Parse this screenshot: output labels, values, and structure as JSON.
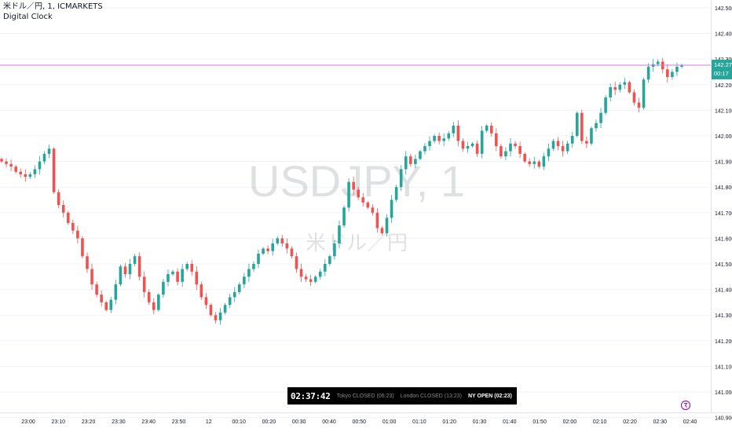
{
  "legend": {
    "symbol_line": "米ドル／円, 1, ICMARKETS",
    "indicator_name": "Digital Clock"
  },
  "watermark": {
    "ticker": "USDJPY, 1",
    "subtitle": "米ドル／円"
  },
  "price_label": {
    "price": "142.276",
    "countdown": "00:17"
  },
  "clock": {
    "time": "02:37:42",
    "sessions": [
      {
        "label": "Tokyo CLOSED (06:23)",
        "open": false
      },
      {
        "label": "London CLOSED (13:23)",
        "open": false
      },
      {
        "label": "NY OPEN (02:23)",
        "open": true
      }
    ]
  },
  "colors": {
    "up": "#26a69a",
    "down": "#ef5350",
    "grid": "#f0f3fa",
    "axis_text": "#131722",
    "price_line": "#c77ddd",
    "label_bg": "#26a69a",
    "clock_bg": "#000000",
    "watermark": "#131722"
  },
  "chart_data": {
    "type": "candlestick",
    "ylim": [
      141.0,
      142.5
    ],
    "y_ticks": [
      "142.500",
      "142.400",
      "142.300",
      "142.200",
      "142.100",
      "142.000",
      "141.900",
      "141.800",
      "141.700",
      "141.600",
      "141.500",
      "141.400",
      "141.300",
      "141.200",
      "141.100",
      "141.000",
      "140.900"
    ],
    "x_ticks": [
      "23:00",
      "23:10",
      "23:20",
      "23:30",
      "23:40",
      "23:50",
      "12",
      "00:10",
      "00:20",
      "00:30",
      "00:40",
      "00:50",
      "01:00",
      "01:10",
      "01:20",
      "01:30",
      "01:40",
      "01:50",
      "02:00",
      "02:10",
      "02:20",
      "02:30",
      "02:40"
    ],
    "close_path": [
      141.9,
      141.89,
      141.88,
      141.86,
      141.85,
      141.84,
      141.85,
      141.87,
      141.9,
      141.93,
      141.95,
      141.78,
      141.73,
      141.7,
      141.66,
      141.63,
      141.6,
      141.53,
      141.48,
      141.42,
      141.38,
      141.35,
      141.32,
      141.36,
      141.42,
      141.49,
      141.46,
      141.5,
      141.53,
      141.45,
      141.39,
      141.35,
      141.32,
      141.38,
      141.43,
      141.46,
      141.47,
      141.43,
      141.48,
      141.5,
      141.47,
      141.42,
      141.37,
      141.34,
      141.3,
      141.28,
      141.31,
      141.34,
      141.37,
      141.39,
      141.42,
      141.45,
      141.48,
      141.5,
      141.54,
      141.56,
      141.55,
      141.58,
      141.6,
      141.58,
      141.56,
      141.53,
      141.48,
      141.45,
      141.44,
      141.43,
      141.45,
      141.47,
      141.5,
      141.53,
      141.58,
      141.65,
      141.72,
      141.82,
      141.79,
      141.76,
      141.74,
      141.72,
      141.7,
      141.64,
      141.62,
      141.68,
      141.75,
      141.8,
      141.87,
      141.92,
      141.89,
      141.91,
      141.94,
      141.96,
      141.98,
      142.0,
      141.98,
      141.99,
      142.01,
      142.04,
      141.98,
      141.95,
      141.96,
      141.97,
      141.93,
      142.02,
      142.04,
      142.01,
      141.96,
      141.92,
      141.94,
      141.97,
      141.96,
      141.93,
      141.9,
      141.89,
      141.9,
      141.88,
      141.92,
      141.95,
      141.98,
      141.96,
      141.94,
      141.97,
      142.0,
      142.09,
      141.98,
      141.97,
      142.03,
      142.05,
      142.09,
      142.15,
      142.19,
      142.18,
      142.2,
      142.21,
      142.17,
      142.13,
      142.11,
      142.22,
      142.27,
      142.28,
      142.29,
      142.26,
      142.23,
      142.25,
      142.27,
      142.276
    ]
  }
}
